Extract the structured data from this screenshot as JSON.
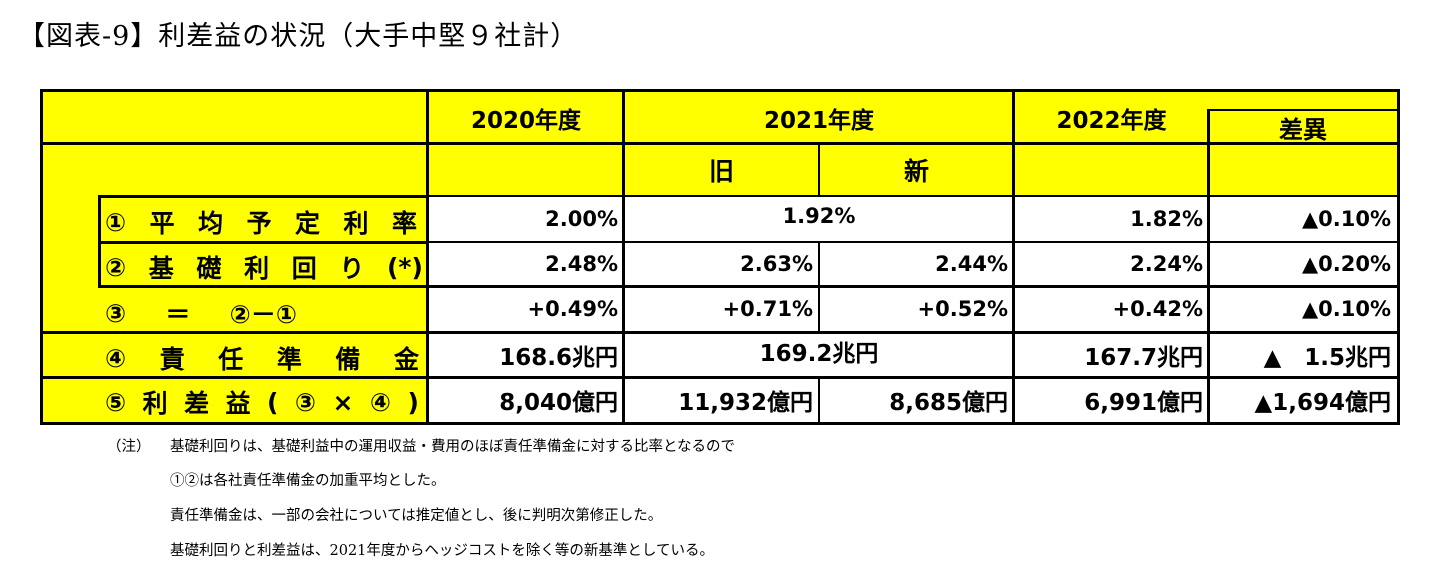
{
  "title": "【図表-9】利差益の状況（大手中堅９社計）",
  "header": {
    "col_2020": "2020年度",
    "col_2021": "2021年度",
    "col_2022": "2022年度",
    "col_diff": "差異",
    "sub_old": "旧",
    "sub_new": "新"
  },
  "rows": [
    {
      "label_chars": [
        "①",
        "平",
        "均",
        "予",
        "定",
        "利",
        "率"
      ],
      "v2020": "2.00%",
      "v2021": "1.92%",
      "v2022": "1.82%",
      "diff": "▲0.10%"
    },
    {
      "label_chars": [
        "②",
        "基",
        "礎",
        "利",
        "回",
        "り",
        "(*)"
      ],
      "v2020": "2.48%",
      "v2021_old": "2.63%",
      "v2021_new": "2.44%",
      "v2022": "2.24%",
      "diff": "▲0.20%"
    },
    {
      "label_chars": [
        "③",
        "＝",
        "②－①"
      ],
      "v2020": "+0.49%",
      "v2021_old": "+0.71%",
      "v2021_new": "+0.52%",
      "v2022": "+0.42%",
      "diff": "▲0.10%"
    },
    {
      "label_chars": [
        "④",
        "責",
        "任",
        "準",
        "備",
        "金"
      ],
      "v2020": "168.6兆円",
      "v2021": "169.2兆円",
      "v2022": "167.7兆円",
      "diff": "▲　1.5兆円"
    },
    {
      "label_chars": [
        "⑤",
        "利",
        "差",
        "益",
        "(",
        "③",
        "×",
        "④",
        ")"
      ],
      "v2020": "8,040億円",
      "v2021_old": "11,932億円",
      "v2021_new": "8,685億円",
      "v2022": "6,991億円",
      "diff": "▲1,694億円"
    }
  ],
  "notes": {
    "prefix": "（注）",
    "line1": "基礎利回りは、基礎利益中の運用収益・費用のほぼ責任準備金に対する比率となるので",
    "line2": "①②は各社責任準備金の加重平均とした。",
    "line3": "責任準備金は、一部の会社については推定値とし、後に判明次第修正した。",
    "line4": "基礎利回りと利差益は、2021年度からヘッジコストを除く等の新基準としている。"
  }
}
